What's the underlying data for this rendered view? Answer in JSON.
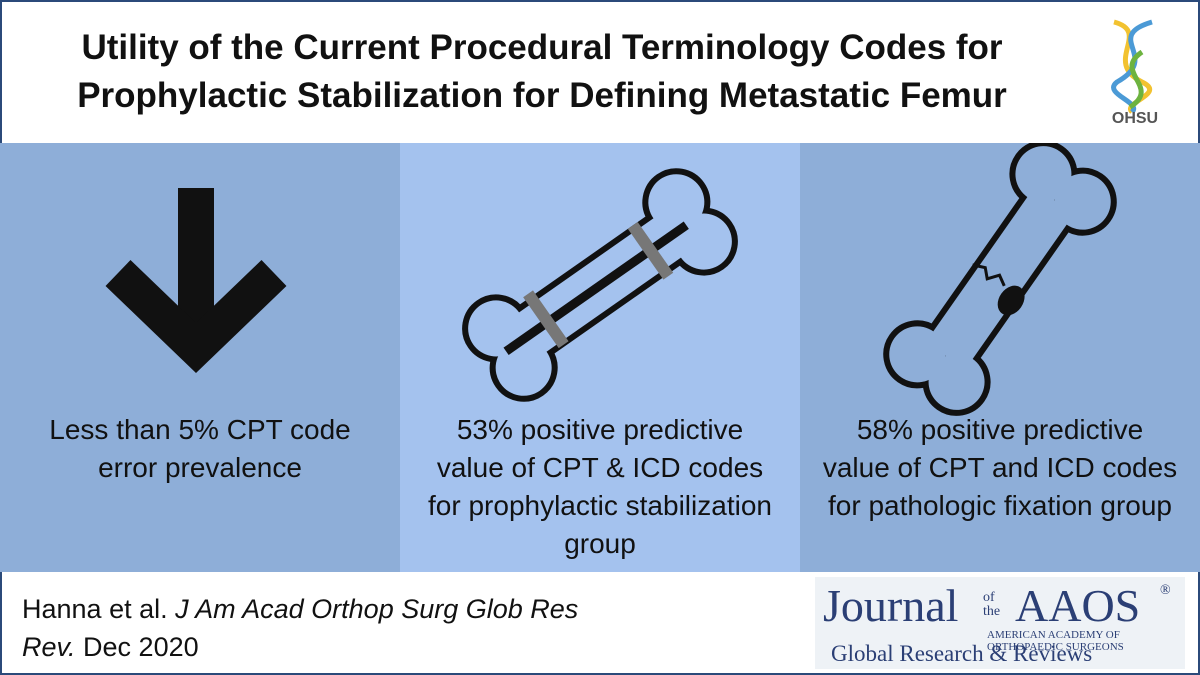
{
  "header": {
    "title_lines": [
      "Utility of the Current Procedural Terminology Codes for",
      "Prophylactic Stabilization for Defining Metastatic Femur"
    ],
    "logo": "OHSU"
  },
  "panels": [
    {
      "text": "Less than 5% CPT code error prevalence"
    },
    {
      "text": "53% positive predictive value of CPT & ICD codes for prophylactic stabilization group"
    },
    {
      "text": "58% positive predictive value of CPT and ICD codes for pathologic fixation group"
    }
  ],
  "citation": {
    "authors": "Hanna et al.",
    "journal": "J Am Acad Orthop Surg Glob Res Rev.",
    "date": "Dec 2020"
  },
  "journal_logo": {
    "word": "Journal",
    "of_the": "of the",
    "name": "AAOS",
    "mark": "®",
    "academy": "AMERICAN ACADEMY OF ORTHOPAEDIC SURGEONS",
    "subtitle": "Global Research & Reviews"
  }
}
